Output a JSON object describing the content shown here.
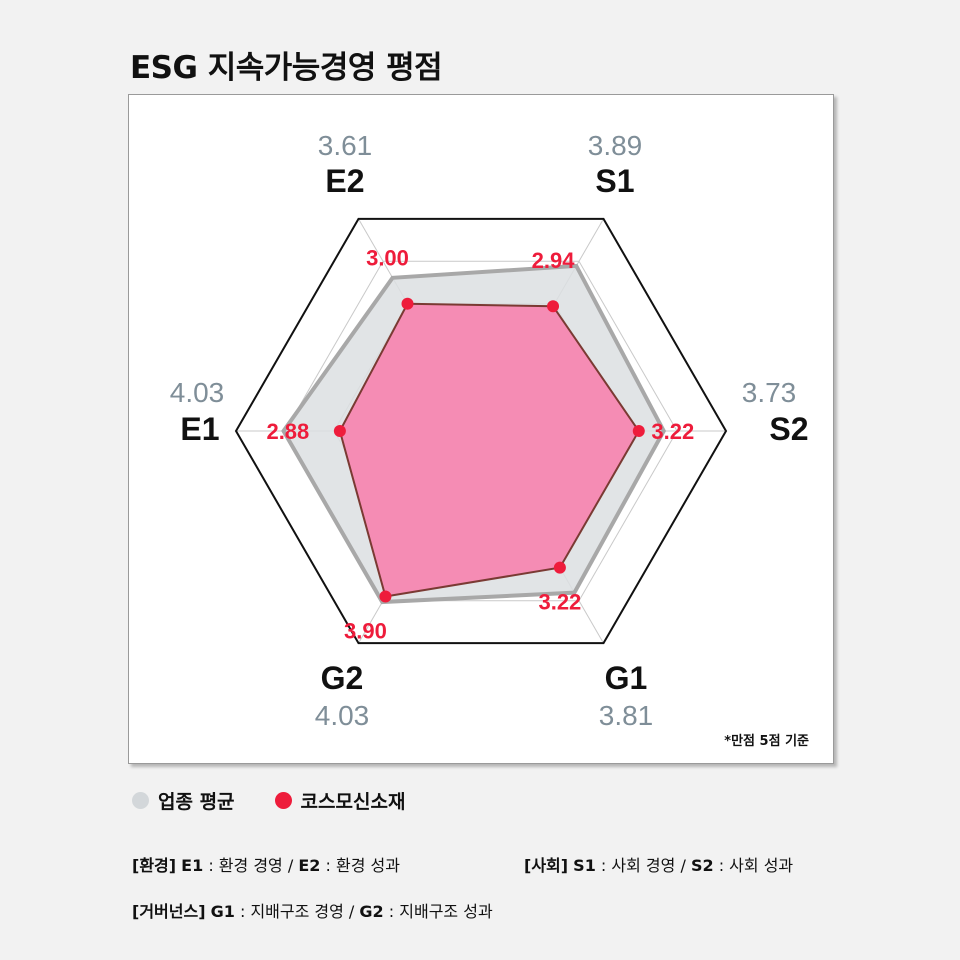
{
  "title": "ESG 지속가능경영 평점",
  "note": "*만점 5점 기준",
  "legend": {
    "industry": "업종 평균",
    "company": "코스모신소재"
  },
  "colors": {
    "industry_fill": "#dcdfe2",
    "industry_stroke": "#a8a8a8",
    "industry_text": "#7f8e98",
    "company_fill": "#f58cb4",
    "company_stroke": "#7a3a33",
    "company_dot": "#ee1c3b",
    "company_text": "#ee1c3b",
    "axis_text": "#111111"
  },
  "descriptions": {
    "env_tag": "[환경]",
    "env_text_1": "E1",
    "env_desc_1": ": 환경 경영 /",
    "env_text_2": "E2",
    "env_desc_2": ": 환경 성과",
    "soc_tag": "[사회]",
    "soc_text_1": "S1",
    "soc_desc_1": ": 사회 경영 /",
    "soc_text_2": "S2",
    "soc_desc_2": ": 사회 성과",
    "gov_tag": "[거버넌스]",
    "gov_text_1": "G1",
    "gov_desc_1": ": 지배구조 경영 /",
    "gov_text_2": "G2",
    "gov_desc_2": ": 지배구조 성과"
  },
  "chart_data": {
    "type": "radar",
    "title": "ESG 지속가능경영 평점",
    "max": 5,
    "categories": [
      "E2",
      "S1",
      "S2",
      "G1",
      "G2",
      "E1"
    ],
    "series": [
      {
        "name": "업종 평균",
        "values": [
          3.61,
          3.89,
          3.73,
          3.81,
          4.03,
          4.03
        ]
      },
      {
        "name": "코스모신소재",
        "values": [
          3.0,
          2.94,
          3.22,
          3.22,
          3.9,
          2.88
        ]
      }
    ]
  }
}
